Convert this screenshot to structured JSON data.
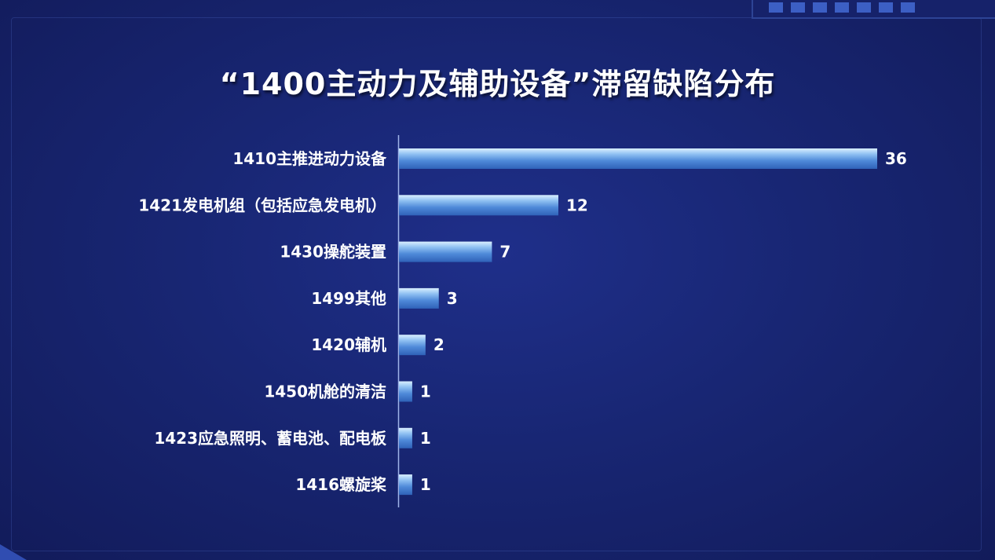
{
  "chart_data": {
    "type": "bar",
    "orientation": "horizontal",
    "title": "“1400主动力及辅助设备”滞留缺陷分布",
    "categories": [
      "1410主推进动力设备",
      "1421发电机组（包括应急发电机）",
      "1430操舵装置",
      "1499其他",
      "1420辅机",
      "1450机舱的清洁",
      "1423应急照明、蓄电池、配电板",
      "1416螺旋桨"
    ],
    "values": [
      36,
      12,
      7,
      3,
      2,
      1,
      1,
      1
    ],
    "xlabel": "",
    "ylabel": "",
    "xlim": [
      0,
      36
    ],
    "grid": false,
    "legend": "none",
    "bar_color": "#5b95e0",
    "bar_highlight": "#d6ecff"
  }
}
